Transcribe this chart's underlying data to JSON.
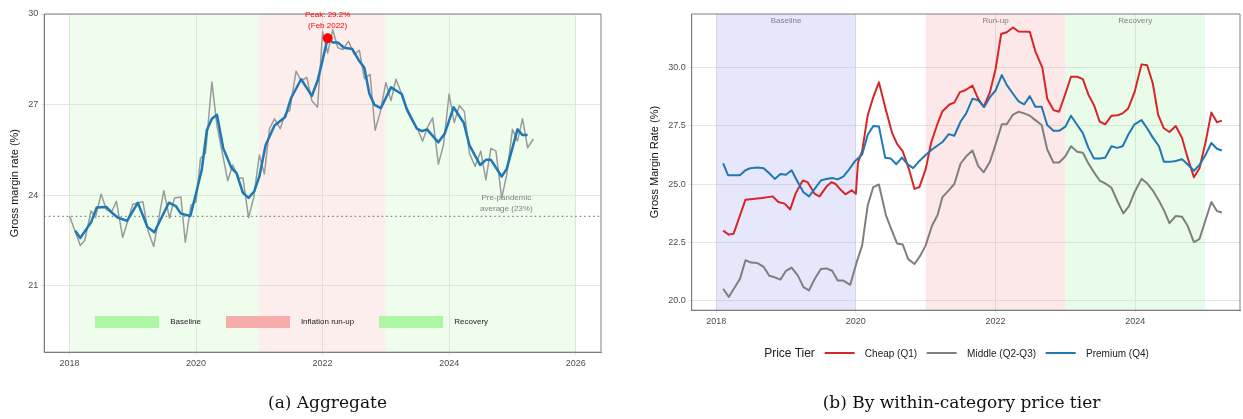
{
  "chart_data": [
    {
      "type": "line",
      "title": "(a) Aggregate",
      "ylabel": "Gross margin rate (%)",
      "xlim": [
        2017.6,
        2026.4
      ],
      "xticks": [
        2018,
        2020,
        2022,
        2024,
        2026
      ],
      "ylim": [
        18.8,
        30
      ],
      "yticks": [
        21,
        24,
        27,
        30
      ],
      "grid": true,
      "series": [
        {
          "color": "#9a9a9a",
          "x": [
            2018.0,
            2018.17,
            2018.24,
            2018.34,
            2018.41,
            2018.5,
            2018.58,
            2018.66,
            2018.74,
            2018.84,
            2019.0,
            2019.16,
            2019.24,
            2019.33,
            2019.49,
            2019.58,
            2019.66,
            2019.76,
            2019.83,
            2019.92,
            2020.0,
            2020.07,
            2020.15,
            2020.25,
            2020.33,
            2020.5,
            2020.58,
            2020.67,
            2020.74,
            2020.83,
            2020.91,
            2021.0,
            2021.08,
            2021.16,
            2021.24,
            2021.33,
            2021.41,
            2021.48,
            2021.58,
            2021.66,
            2021.75,
            2021.83,
            2021.92,
            2022.0,
            2022.08,
            2022.16,
            2022.24,
            2022.32,
            2022.41,
            2022.5,
            2022.58,
            2022.66,
            2022.75,
            2022.83,
            2022.91,
            2023.0,
            2023.08,
            2023.16,
            2023.25,
            2023.33,
            2023.41,
            2023.5,
            2023.58,
            2023.66,
            2023.74,
            2023.83,
            2023.91,
            2024.0,
            2024.08,
            2024.16,
            2024.24,
            2024.32,
            2024.41,
            2024.5,
            2024.58,
            2024.66,
            2024.74,
            2024.83,
            2024.91,
            2025.0,
            2025.08,
            2025.16,
            2025.24,
            2025.33
          ],
          "values": [
            23.31,
            22.33,
            22.5,
            23.48,
            23.26,
            24.04,
            23.53,
            23.42,
            23.8,
            22.6,
            23.7,
            23.78,
            22.82,
            22.3,
            24.15,
            23.24,
            23.91,
            23.94,
            22.44,
            23.67,
            23.78,
            25.22,
            25.39,
            27.75,
            26.31,
            24.48,
            25.0,
            24.57,
            24.57,
            23.26,
            23.91,
            25.33,
            24.7,
            26.2,
            26.53,
            26.2,
            26.7,
            26.8,
            28.11,
            27.79,
            27.9,
            27.13,
            26.91,
            29.42,
            28.71,
            29.48,
            28.88,
            28.82,
            29.1,
            28.66,
            28.8,
            27.86,
            28.0,
            26.15,
            26.75,
            27.73,
            27.13,
            27.84,
            27.35,
            26.8,
            26.48,
            26.2,
            25.79,
            26.26,
            26.56,
            25.03,
            25.66,
            27.35,
            26.4,
            26.97,
            26.77,
            25.39,
            24.95,
            25.46,
            24.51,
            25.55,
            25.46,
            23.9,
            24.68,
            26.18,
            25.79,
            26.53,
            25.57,
            25.86
          ]
        },
        {
          "color": "#1f77b4",
          "x": [
            2018.09,
            2018.17,
            2018.34,
            2018.43,
            2018.58,
            2018.67,
            2018.76,
            2018.91,
            2019.08,
            2019.23,
            2019.34,
            2019.57,
            2019.68,
            2019.76,
            2019.91,
            2020.02,
            2020.09,
            2020.17,
            2020.25,
            2020.33,
            2020.43,
            2020.56,
            2020.64,
            2020.74,
            2020.83,
            2020.92,
            2021.0,
            2021.1,
            2021.24,
            2021.41,
            2021.5,
            2021.66,
            2021.83,
            2021.92,
            2021.99,
            2022.08,
            2022.16,
            2022.24,
            2022.34,
            2022.47,
            2022.58,
            2022.66,
            2022.74,
            2022.82,
            2022.92,
            2023.08,
            2023.25,
            2023.33,
            2023.49,
            2023.57,
            2023.65,
            2023.83,
            2023.93,
            2024.07,
            2024.23,
            2024.32,
            2024.49,
            2024.58,
            2024.66,
            2024.83,
            2024.91,
            2025.08,
            2025.16,
            2025.24
          ],
          "values": [
            22.82,
            22.58,
            23.1,
            23.59,
            23.61,
            23.42,
            23.26,
            23.15,
            23.75,
            22.95,
            22.77,
            23.75,
            23.64,
            23.39,
            23.31,
            24.24,
            24.84,
            26.15,
            26.53,
            26.66,
            25.55,
            24.9,
            24.73,
            24.08,
            23.91,
            24.13,
            24.62,
            25.66,
            26.31,
            26.59,
            27.21,
            27.84,
            27.29,
            27.79,
            28.39,
            29.2,
            29.06,
            29.06,
            28.88,
            28.84,
            28.44,
            28.22,
            27.35,
            26.99,
            26.88,
            27.57,
            27.35,
            26.86,
            26.2,
            26.12,
            26.18,
            25.75,
            26.04,
            26.91,
            26.4,
            25.66,
            25.0,
            25.17,
            25.17,
            24.62,
            24.87,
            26.18,
            25.99,
            25.99
          ]
        },
        {
          "type": "scatter",
          "color": "#ff0000",
          "x": [
            2022.08
          ],
          "values": [
            29.2
          ]
        }
      ],
      "bands": [
        {
          "axis": "x",
          "from": 2018,
          "to": 2021,
          "label": "Baseline",
          "color": "#a8f5a0"
        },
        {
          "axis": "x",
          "from": 2021,
          "to": 2023,
          "label": "Inflation run-up",
          "color": "#f5a8a8"
        },
        {
          "axis": "x",
          "from": 2023,
          "to": 2026,
          "label": "Recovery",
          "color": "#a8f5a0"
        }
      ],
      "ref_lines": [
        {
          "axis": "y",
          "value": 23.3,
          "label": "Pre-pandemic average (23%)",
          "color": "#808080",
          "line_style": "dotted"
        }
      ],
      "annotations": [
        {
          "text": "Peak: 29.2%\n(Feb 2022)",
          "x": 2022.08,
          "y": 29.2
        }
      ]
    },
    {
      "type": "line",
      "title": "(b) By within-category price tier",
      "ylabel": "Gross Margin Rate (%)",
      "legend_title": "Price Tier",
      "legend": "bottom",
      "xlim": [
        2017.65,
        2025.5
      ],
      "xticks": [
        2018,
        2020,
        2022,
        2024
      ],
      "ylim": [
        19.6,
        32.3
      ],
      "yticks": [
        {
          "value": 20,
          "label": "20.0"
        },
        {
          "value": 22.5,
          "label": "22.5"
        },
        {
          "value": 25,
          "label": "25.0"
        },
        {
          "value": 27.5,
          "label": "27.5"
        },
        {
          "value": 30,
          "label": "30.0"
        }
      ],
      "grid": true,
      "series": [
        {
          "name": "Cheap (Q1)",
          "color": "#d62728",
          "x": [
            2018.1,
            2018.18,
            2018.25,
            2018.42,
            2018.66,
            2018.81,
            2018.89,
            2018.98,
            2019.06,
            2019.14,
            2019.24,
            2019.31,
            2019.41,
            2019.48,
            2019.58,
            2019.65,
            2019.71,
            2019.79,
            2019.85,
            2019.94,
            2020.0,
            2020.03,
            2020.09,
            2020.17,
            2020.25,
            2020.33,
            2020.43,
            2020.52,
            2020.59,
            2020.67,
            2020.76,
            2020.84,
            2020.91,
            2021.0,
            2021.08,
            2021.18,
            2021.24,
            2021.34,
            2021.41,
            2021.49,
            2021.56,
            2021.67,
            2021.75,
            2021.83,
            2021.92,
            2022.0,
            2022.08,
            2022.16,
            2022.25,
            2022.33,
            2022.49,
            2022.57,
            2022.67,
            2022.74,
            2022.83,
            2022.91,
            2023.0,
            2023.08,
            2023.17,
            2023.25,
            2023.33,
            2023.41,
            2023.49,
            2023.57,
            2023.66,
            2023.75,
            2023.82,
            2023.9,
            2023.99,
            2024.09,
            2024.17,
            2024.25,
            2024.33,
            2024.41,
            2024.49,
            2024.58,
            2024.67,
            2024.75,
            2024.84,
            2024.92,
            2025.01,
            2025.09,
            2025.17,
            2025.24
          ],
          "values": [
            23.01,
            22.84,
            22.88,
            24.34,
            24.41,
            24.48,
            24.24,
            24.17,
            23.92,
            24.62,
            25.16,
            25.09,
            24.59,
            24.48,
            24.9,
            25.09,
            25.01,
            24.74,
            24.57,
            24.74,
            24.59,
            25.93,
            26.42,
            27.96,
            28.74,
            29.37,
            28.18,
            27.19,
            26.73,
            26.42,
            25.65,
            24.8,
            24.88,
            25.65,
            26.8,
            27.69,
            28.13,
            28.42,
            28.5,
            28.95,
            29.02,
            29.23,
            28.67,
            28.32,
            28.95,
            29.93,
            31.44,
            31.52,
            31.72,
            31.55,
            31.54,
            30.7,
            30.0,
            28.67,
            28.18,
            28.11,
            28.88,
            29.61,
            29.61,
            29.51,
            28.84,
            28.39,
            27.69,
            27.57,
            27.94,
            27.96,
            28.04,
            28.25,
            28.95,
            30.14,
            30.1,
            29.34,
            27.96,
            27.4,
            27.24,
            27.5,
            26.98,
            26.14,
            25.3,
            25.69,
            26.84,
            28.08,
            27.66,
            27.73
          ]
        },
        {
          "name": "Middle (Q2-Q3)",
          "color": "#7f7f7f",
          "x": [
            2018.1,
            2018.18,
            2018.34,
            2018.42,
            2018.5,
            2018.59,
            2018.68,
            2018.76,
            2018.84,
            2018.92,
            2019.0,
            2019.08,
            2019.17,
            2019.25,
            2019.33,
            2019.41,
            2019.5,
            2019.58,
            2019.66,
            2019.74,
            2019.82,
            2019.92,
            2020.01,
            2020.09,
            2020.17,
            2020.25,
            2020.33,
            2020.43,
            2020.51,
            2020.59,
            2020.67,
            2020.75,
            2020.84,
            2020.92,
            2021.0,
            2021.09,
            2021.17,
            2021.24,
            2021.33,
            2021.41,
            2021.5,
            2021.58,
            2021.67,
            2021.75,
            2021.83,
            2021.92,
            2022.0,
            2022.09,
            2022.16,
            2022.25,
            2022.33,
            2022.41,
            2022.49,
            2022.57,
            2022.66,
            2022.74,
            2022.83,
            2022.91,
            2023.0,
            2023.08,
            2023.17,
            2023.25,
            2023.33,
            2023.41,
            2023.49,
            2023.57,
            2023.66,
            2023.75,
            2023.83,
            2023.91,
            2023.99,
            2024.09,
            2024.17,
            2024.25,
            2024.34,
            2024.41,
            2024.49,
            2024.58,
            2024.67,
            2024.75,
            2024.84,
            2024.92,
            2025.01,
            2025.09,
            2025.17,
            2025.24
          ],
          "values": [
            20.52,
            20.17,
            20.94,
            21.74,
            21.64,
            21.62,
            21.46,
            21.08,
            21.01,
            20.91,
            21.29,
            21.43,
            21.08,
            20.59,
            20.45,
            20.94,
            21.37,
            21.39,
            21.29,
            20.87,
            20.87,
            20.69,
            21.64,
            22.38,
            24.1,
            24.88,
            24.99,
            23.68,
            23.05,
            22.46,
            22.42,
            21.79,
            21.58,
            21.93,
            22.38,
            23.22,
            23.68,
            24.45,
            24.74,
            25.01,
            25.89,
            26.2,
            26.45,
            25.79,
            25.51,
            25.97,
            26.7,
            27.57,
            27.57,
            27.99,
            28.11,
            28.04,
            27.94,
            27.75,
            27.54,
            26.49,
            25.93,
            25.93,
            26.2,
            26.63,
            26.39,
            26.35,
            25.89,
            25.51,
            25.16,
            25.04,
            24.85,
            24.24,
            23.75,
            24.06,
            24.66,
            25.23,
            25.04,
            24.74,
            24.29,
            23.89,
            23.33,
            23.64,
            23.61,
            23.22,
            22.52,
            22.65,
            23.5,
            24.24,
            23.85,
            23.79
          ]
        },
        {
          "name": "Premium (Q4)",
          "color": "#1f77b4",
          "x": [
            2018.1,
            2018.17,
            2018.34,
            2018.42,
            2018.49,
            2018.59,
            2018.68,
            2018.76,
            2018.84,
            2018.92,
            2019.0,
            2019.08,
            2019.17,
            2019.25,
            2019.33,
            2019.41,
            2019.5,
            2019.58,
            2019.66,
            2019.74,
            2019.82,
            2019.89,
            2019.99,
            2020.09,
            2020.17,
            2020.25,
            2020.33,
            2020.42,
            2020.5,
            2020.58,
            2020.66,
            2020.74,
            2020.82,
            2020.91,
            2021.0,
            2021.09,
            2021.24,
            2021.33,
            2021.41,
            2021.5,
            2021.58,
            2021.67,
            2021.75,
            2021.84,
            2021.92,
            2022.0,
            2022.09,
            2022.16,
            2022.25,
            2022.33,
            2022.41,
            2022.49,
            2022.57,
            2022.66,
            2022.74,
            2022.83,
            2022.91,
            2023.0,
            2023.08,
            2023.17,
            2023.25,
            2023.33,
            2023.41,
            2023.49,
            2023.57,
            2023.66,
            2023.74,
            2023.82,
            2023.9,
            2023.99,
            2024.09,
            2024.17,
            2024.25,
            2024.34,
            2024.41,
            2024.49,
            2024.58,
            2024.67,
            2024.75,
            2024.84,
            2024.92,
            2025.01,
            2025.09,
            2025.17,
            2025.24
          ],
          "values": [
            25.9,
            25.39,
            25.39,
            25.6,
            25.69,
            25.72,
            25.69,
            25.47,
            25.23,
            25.44,
            25.41,
            25.6,
            25.09,
            24.66,
            24.48,
            24.8,
            25.16,
            25.23,
            25.27,
            25.21,
            25.33,
            25.58,
            26.0,
            26.28,
            27.12,
            27.5,
            27.48,
            26.14,
            26.1,
            25.86,
            26.14,
            25.86,
            25.69,
            26.0,
            26.25,
            26.49,
            26.81,
            27.15,
            27.08,
            27.69,
            28.04,
            28.67,
            28.6,
            28.32,
            28.74,
            29.02,
            29.68,
            29.26,
            28.88,
            28.55,
            28.42,
            28.78,
            28.32,
            28.32,
            27.54,
            27.29,
            27.29,
            27.47,
            27.94,
            27.54,
            27.19,
            26.56,
            26.1,
            26.1,
            26.14,
            26.63,
            26.56,
            26.63,
            27.12,
            27.57,
            27.75,
            27.4,
            27.01,
            26.63,
            25.97,
            25.96,
            26.0,
            26.07,
            25.86,
            25.58,
            25.83,
            26.28,
            26.77,
            26.52,
            26.45
          ]
        }
      ],
      "bands": [
        {
          "axis": "x",
          "from": 2018,
          "to": 2020,
          "label": "Baseline",
          "color": "#8585ee"
        },
        {
          "axis": "x",
          "from": 2021,
          "to": 2023,
          "label": "Run-up",
          "color": "#f28b8b"
        },
        {
          "axis": "x",
          "from": 2023,
          "to": 2025,
          "label": "Recovery",
          "color": "#90ee90"
        }
      ]
    }
  ]
}
